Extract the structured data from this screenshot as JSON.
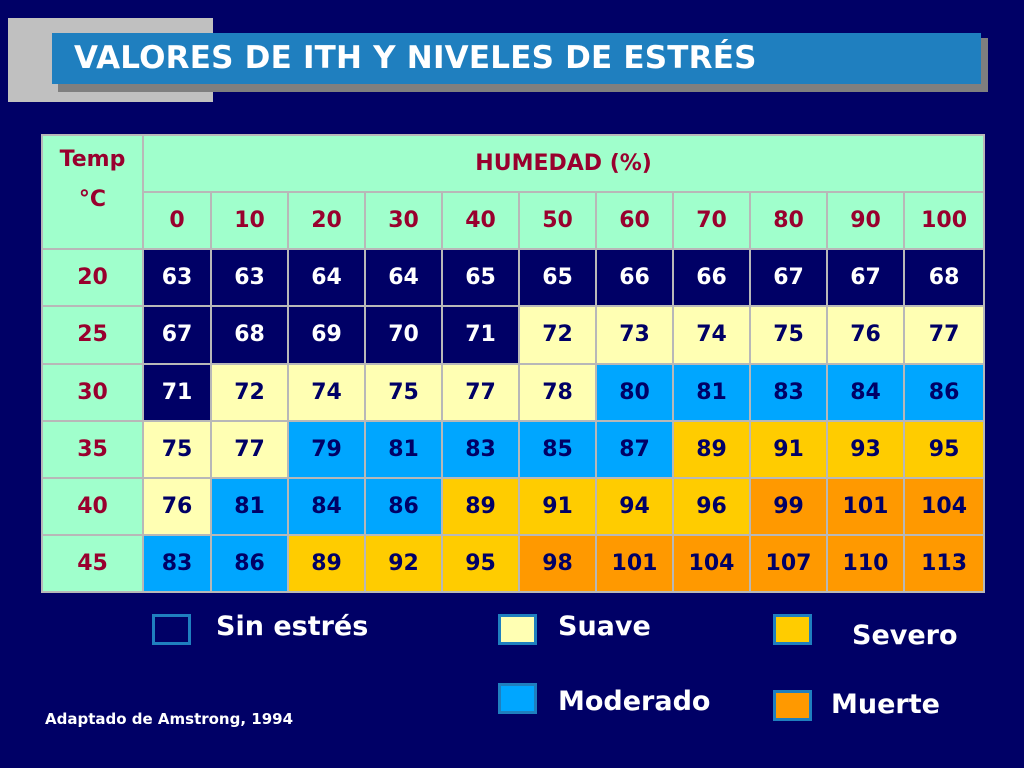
{
  "title": "VALORES DE ITH Y NIVELES DE ESTRÉS",
  "table": {
    "corner_line1": "Temp",
    "corner_line2": "°C",
    "humidity_header": "HUMEDAD (%)",
    "humidity_values": [
      "0",
      "10",
      "20",
      "30",
      "40",
      "50",
      "60",
      "70",
      "80",
      "90",
      "100"
    ],
    "rows": [
      {
        "temp": "20",
        "values": [
          "63",
          "63",
          "64",
          "64",
          "65",
          "65",
          "66",
          "66",
          "67",
          "67",
          "68"
        ],
        "levels": [
          "sin",
          "sin",
          "sin",
          "sin",
          "sin",
          "sin",
          "sin",
          "sin",
          "sin",
          "sin",
          "sin"
        ]
      },
      {
        "temp": "25",
        "values": [
          "67",
          "68",
          "69",
          "70",
          "71",
          "72",
          "73",
          "74",
          "75",
          "76",
          "77"
        ],
        "levels": [
          "sin",
          "sin",
          "sin",
          "sin",
          "sin",
          "suave",
          "suave",
          "suave",
          "suave",
          "suave",
          "suave"
        ]
      },
      {
        "temp": "30",
        "values": [
          "71",
          "72",
          "74",
          "75",
          "77",
          "78",
          "80",
          "81",
          "83",
          "84",
          "86"
        ],
        "levels": [
          "sin",
          "suave",
          "suave",
          "suave",
          "suave",
          "suave",
          "moderado",
          "moderado",
          "moderado",
          "moderado",
          "moderado"
        ]
      },
      {
        "temp": "35",
        "values": [
          "75",
          "77",
          "79",
          "81",
          "83",
          "85",
          "87",
          "89",
          "91",
          "93",
          "95"
        ],
        "levels": [
          "suave",
          "suave",
          "moderado",
          "moderado",
          "moderado",
          "moderado",
          "moderado",
          "severo",
          "severo",
          "severo",
          "severo"
        ]
      },
      {
        "temp": "40",
        "values": [
          "76",
          "81",
          "84",
          "86",
          "89",
          "91",
          "94",
          "96",
          "99",
          "101",
          "104"
        ],
        "levels": [
          "suave",
          "moderado",
          "moderado",
          "moderado",
          "severo",
          "severo",
          "severo",
          "severo",
          "muerte",
          "muerte",
          "muerte"
        ]
      },
      {
        "temp": "45",
        "values": [
          "83",
          "86",
          "89",
          "92",
          "95",
          "98",
          "101",
          "104",
          "107",
          "110",
          "113"
        ],
        "levels": [
          "moderado",
          "moderado",
          "severo",
          "severo",
          "severo",
          "muerte",
          "muerte",
          "muerte",
          "muerte",
          "muerte",
          "muerte"
        ]
      }
    ]
  },
  "legend": {
    "sin_estres": {
      "label": "Sin estrés",
      "color": "#000066"
    },
    "suave": {
      "label": "Suave",
      "color": "#ffffb3"
    },
    "severo": {
      "label": "Severo",
      "color": "#ffcc00"
    },
    "moderado": {
      "label": "Moderado",
      "color": "#00a6ff"
    },
    "muerte": {
      "label": "Muerte",
      "color": "#ff9900"
    }
  },
  "footer": "Adaptado de Amstrong, 1994",
  "colors": {
    "background": "#000066",
    "title_bar": "#1f7fbf",
    "header_cells": "#a0ffcc",
    "header_text": "#99002e"
  }
}
